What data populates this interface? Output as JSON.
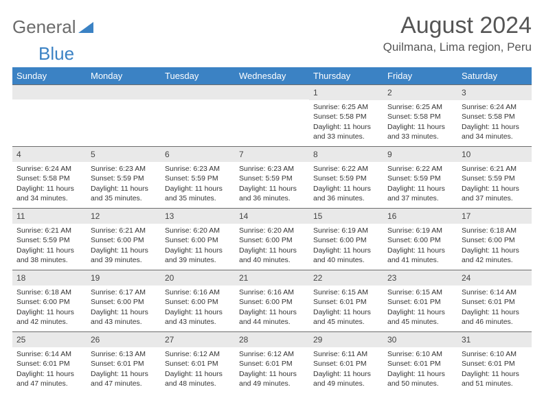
{
  "logo": {
    "text1": "General",
    "text2": "Blue"
  },
  "title": "August 2024",
  "location": "Quilmana, Lima region, Peru",
  "colors": {
    "header_bg": "#3b82c4",
    "header_text": "#ffffff",
    "daynum_bg": "#e9e9e9",
    "daynum_border": "#6b6b6b",
    "body_text": "#333333",
    "title_text": "#555555"
  },
  "weekdays": [
    "Sunday",
    "Monday",
    "Tuesday",
    "Wednesday",
    "Thursday",
    "Friday",
    "Saturday"
  ],
  "weeks": [
    [
      null,
      null,
      null,
      null,
      {
        "n": "1",
        "sunrise": "Sunrise: 6:25 AM",
        "sunset": "Sunset: 5:58 PM",
        "daylight": "Daylight: 11 hours and 33 minutes."
      },
      {
        "n": "2",
        "sunrise": "Sunrise: 6:25 AM",
        "sunset": "Sunset: 5:58 PM",
        "daylight": "Daylight: 11 hours and 33 minutes."
      },
      {
        "n": "3",
        "sunrise": "Sunrise: 6:24 AM",
        "sunset": "Sunset: 5:58 PM",
        "daylight": "Daylight: 11 hours and 34 minutes."
      }
    ],
    [
      {
        "n": "4",
        "sunrise": "Sunrise: 6:24 AM",
        "sunset": "Sunset: 5:58 PM",
        "daylight": "Daylight: 11 hours and 34 minutes."
      },
      {
        "n": "5",
        "sunrise": "Sunrise: 6:23 AM",
        "sunset": "Sunset: 5:59 PM",
        "daylight": "Daylight: 11 hours and 35 minutes."
      },
      {
        "n": "6",
        "sunrise": "Sunrise: 6:23 AM",
        "sunset": "Sunset: 5:59 PM",
        "daylight": "Daylight: 11 hours and 35 minutes."
      },
      {
        "n": "7",
        "sunrise": "Sunrise: 6:23 AM",
        "sunset": "Sunset: 5:59 PM",
        "daylight": "Daylight: 11 hours and 36 minutes."
      },
      {
        "n": "8",
        "sunrise": "Sunrise: 6:22 AM",
        "sunset": "Sunset: 5:59 PM",
        "daylight": "Daylight: 11 hours and 36 minutes."
      },
      {
        "n": "9",
        "sunrise": "Sunrise: 6:22 AM",
        "sunset": "Sunset: 5:59 PM",
        "daylight": "Daylight: 11 hours and 37 minutes."
      },
      {
        "n": "10",
        "sunrise": "Sunrise: 6:21 AM",
        "sunset": "Sunset: 5:59 PM",
        "daylight": "Daylight: 11 hours and 37 minutes."
      }
    ],
    [
      {
        "n": "11",
        "sunrise": "Sunrise: 6:21 AM",
        "sunset": "Sunset: 5:59 PM",
        "daylight": "Daylight: 11 hours and 38 minutes."
      },
      {
        "n": "12",
        "sunrise": "Sunrise: 6:21 AM",
        "sunset": "Sunset: 6:00 PM",
        "daylight": "Daylight: 11 hours and 39 minutes."
      },
      {
        "n": "13",
        "sunrise": "Sunrise: 6:20 AM",
        "sunset": "Sunset: 6:00 PM",
        "daylight": "Daylight: 11 hours and 39 minutes."
      },
      {
        "n": "14",
        "sunrise": "Sunrise: 6:20 AM",
        "sunset": "Sunset: 6:00 PM",
        "daylight": "Daylight: 11 hours and 40 minutes."
      },
      {
        "n": "15",
        "sunrise": "Sunrise: 6:19 AM",
        "sunset": "Sunset: 6:00 PM",
        "daylight": "Daylight: 11 hours and 40 minutes."
      },
      {
        "n": "16",
        "sunrise": "Sunrise: 6:19 AM",
        "sunset": "Sunset: 6:00 PM",
        "daylight": "Daylight: 11 hours and 41 minutes."
      },
      {
        "n": "17",
        "sunrise": "Sunrise: 6:18 AM",
        "sunset": "Sunset: 6:00 PM",
        "daylight": "Daylight: 11 hours and 42 minutes."
      }
    ],
    [
      {
        "n": "18",
        "sunrise": "Sunrise: 6:18 AM",
        "sunset": "Sunset: 6:00 PM",
        "daylight": "Daylight: 11 hours and 42 minutes."
      },
      {
        "n": "19",
        "sunrise": "Sunrise: 6:17 AM",
        "sunset": "Sunset: 6:00 PM",
        "daylight": "Daylight: 11 hours and 43 minutes."
      },
      {
        "n": "20",
        "sunrise": "Sunrise: 6:16 AM",
        "sunset": "Sunset: 6:00 PM",
        "daylight": "Daylight: 11 hours and 43 minutes."
      },
      {
        "n": "21",
        "sunrise": "Sunrise: 6:16 AM",
        "sunset": "Sunset: 6:00 PM",
        "daylight": "Daylight: 11 hours and 44 minutes."
      },
      {
        "n": "22",
        "sunrise": "Sunrise: 6:15 AM",
        "sunset": "Sunset: 6:01 PM",
        "daylight": "Daylight: 11 hours and 45 minutes."
      },
      {
        "n": "23",
        "sunrise": "Sunrise: 6:15 AM",
        "sunset": "Sunset: 6:01 PM",
        "daylight": "Daylight: 11 hours and 45 minutes."
      },
      {
        "n": "24",
        "sunrise": "Sunrise: 6:14 AM",
        "sunset": "Sunset: 6:01 PM",
        "daylight": "Daylight: 11 hours and 46 minutes."
      }
    ],
    [
      {
        "n": "25",
        "sunrise": "Sunrise: 6:14 AM",
        "sunset": "Sunset: 6:01 PM",
        "daylight": "Daylight: 11 hours and 47 minutes."
      },
      {
        "n": "26",
        "sunrise": "Sunrise: 6:13 AM",
        "sunset": "Sunset: 6:01 PM",
        "daylight": "Daylight: 11 hours and 47 minutes."
      },
      {
        "n": "27",
        "sunrise": "Sunrise: 6:12 AM",
        "sunset": "Sunset: 6:01 PM",
        "daylight": "Daylight: 11 hours and 48 minutes."
      },
      {
        "n": "28",
        "sunrise": "Sunrise: 6:12 AM",
        "sunset": "Sunset: 6:01 PM",
        "daylight": "Daylight: 11 hours and 49 minutes."
      },
      {
        "n": "29",
        "sunrise": "Sunrise: 6:11 AM",
        "sunset": "Sunset: 6:01 PM",
        "daylight": "Daylight: 11 hours and 49 minutes."
      },
      {
        "n": "30",
        "sunrise": "Sunrise: 6:10 AM",
        "sunset": "Sunset: 6:01 PM",
        "daylight": "Daylight: 11 hours and 50 minutes."
      },
      {
        "n": "31",
        "sunrise": "Sunrise: 6:10 AM",
        "sunset": "Sunset: 6:01 PM",
        "daylight": "Daylight: 11 hours and 51 minutes."
      }
    ]
  ]
}
